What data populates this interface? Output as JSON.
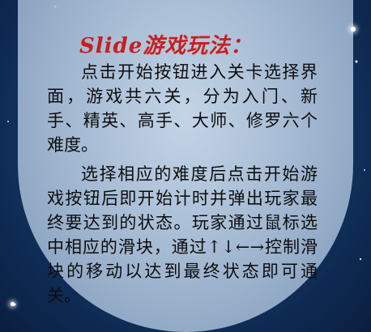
{
  "instructions": {
    "title": "Slide游戏玩法：",
    "paragraphs": [
      "点击开始按钮进入关卡选择界面，游戏共六关，分为入门、新手、精英、高手、大师、修罗六个难度。",
      "选择相应的难度后点击开始游戏按钮后即开始计时并弹出玩家最终要达到的状态。玩家通过鼠标选中相应的滑块，通过↑↓←→控制滑块的移动以达到最终状态即可通关。"
    ]
  },
  "colors": {
    "title": "#c81e1e",
    "text": "#0d0d0d",
    "background": "#153a66"
  }
}
